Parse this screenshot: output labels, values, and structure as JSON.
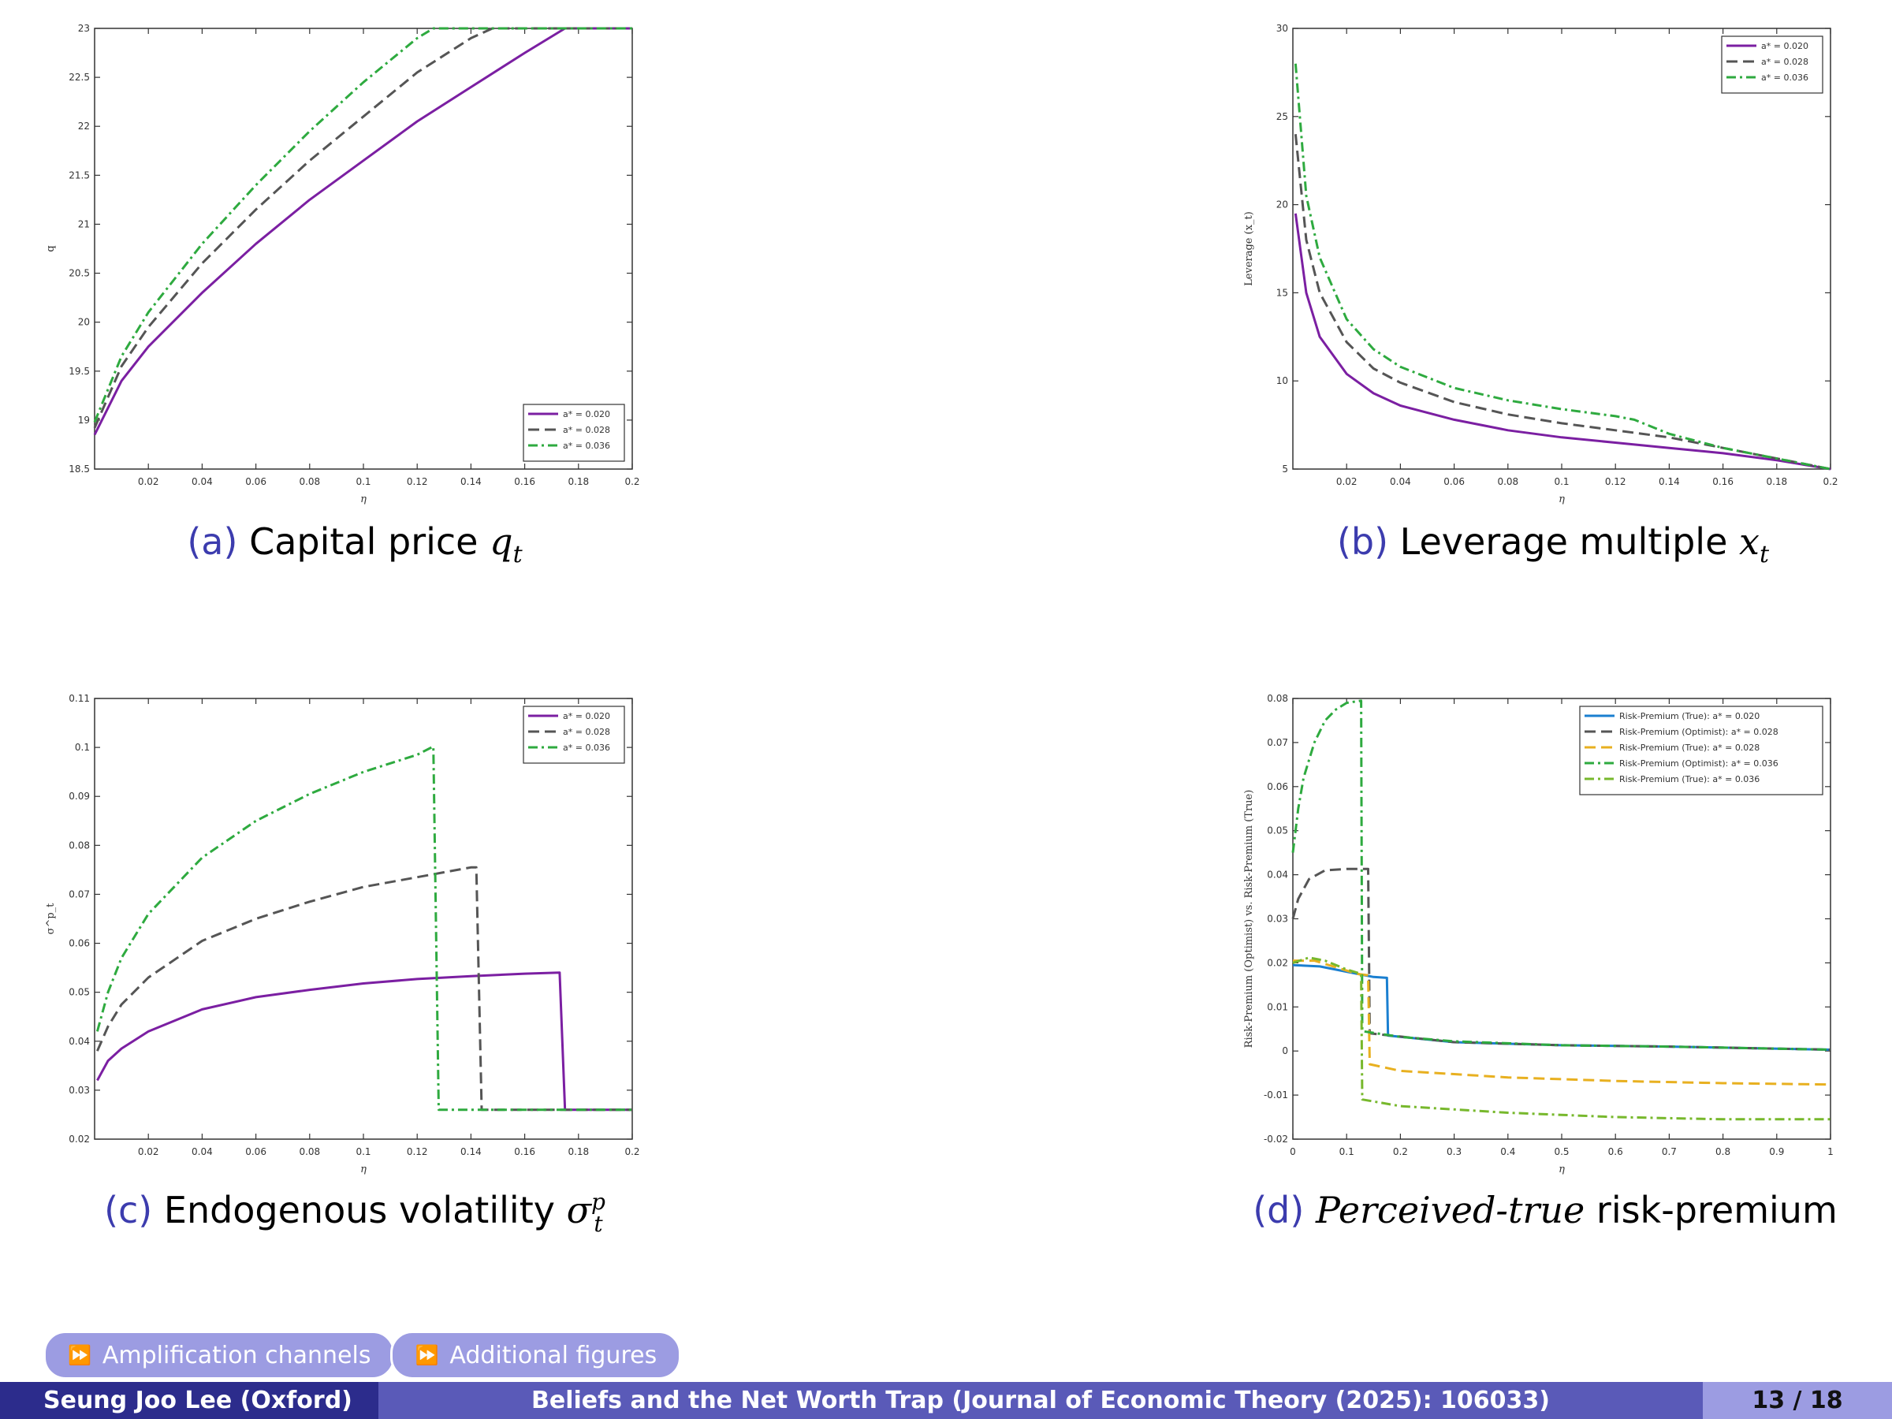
{
  "captions": {
    "a": {
      "tag": "(a)",
      "text": "Capital price ",
      "math": "q",
      "sub": "t"
    },
    "b": {
      "tag": "(b)",
      "text": "Leverage multiple ",
      "math": "x",
      "sub": "t"
    },
    "c": {
      "tag": "(c)",
      "text": "Endogenous volatility ",
      "math": "σ",
      "sup": "p",
      "sub": "t"
    },
    "d": {
      "tag": "(d)",
      "italic": "Perceived-true",
      "text": " risk-premium"
    }
  },
  "nav": {
    "buttons": [
      {
        "icon": "fast-forward-icon",
        "label": "Amplification channels"
      },
      {
        "icon": "fast-forward-icon",
        "label": "Additional figures"
      }
    ]
  },
  "footer": {
    "author": "Seung Joo Lee (Oxford)",
    "title": "Beliefs and the Net Worth Trap (Journal of Economic Theory (2025): 106033)",
    "page": "13 / 18"
  },
  "colors": {
    "purple": "#7b1fa2",
    "gray": "#555555",
    "green": "#2eaa3f",
    "blue": "#1a7fd0",
    "yellow": "#e8b020",
    "lime": "#77b82c",
    "theme": "#5a5ab8"
  },
  "chart_data": [
    {
      "id": "a",
      "type": "line",
      "xlabel": "η",
      "ylabel": "q",
      "xlim": [
        0,
        0.2
      ],
      "ylim": [
        18.5,
        23
      ],
      "xticks": [
        "0.02",
        "0.04",
        "0.06",
        "0.08",
        "0.1",
        "0.12",
        "0.14",
        "0.16",
        "0.18",
        "0.2"
      ],
      "xtick_values": [
        0.02,
        0.04,
        0.06,
        0.08,
        0.1,
        0.12,
        0.14,
        0.16,
        0.18,
        0.2
      ],
      "yticks": [
        "18.5",
        "19",
        "19.5",
        "20",
        "20.5",
        "21",
        "21.5",
        "22",
        "22.5",
        "23"
      ],
      "ytick_values": [
        18.5,
        19,
        19.5,
        20,
        20.5,
        21,
        21.5,
        22,
        22.5,
        23
      ],
      "legend_position": "bottom-right",
      "series": [
        {
          "name": "a* = 0.020",
          "color": "#7b1fa2",
          "dash": "solid",
          "points": [
            [
              0,
              18.85
            ],
            [
              0.01,
              19.4
            ],
            [
              0.02,
              19.75
            ],
            [
              0.04,
              20.3
            ],
            [
              0.06,
              20.8
            ],
            [
              0.08,
              21.25
            ],
            [
              0.1,
              21.65
            ],
            [
              0.12,
              22.05
            ],
            [
              0.14,
              22.4
            ],
            [
              0.16,
              22.75
            ],
            [
              0.175,
              23.0
            ],
            [
              0.2,
              23.0
            ]
          ]
        },
        {
          "name": "a* = 0.028",
          "color": "#555555",
          "dash": "dashed",
          "points": [
            [
              0,
              18.92
            ],
            [
              0.01,
              19.55
            ],
            [
              0.02,
              19.95
            ],
            [
              0.04,
              20.6
            ],
            [
              0.06,
              21.15
            ],
            [
              0.08,
              21.65
            ],
            [
              0.1,
              22.1
            ],
            [
              0.12,
              22.55
            ],
            [
              0.14,
              22.9
            ],
            [
              0.148,
              23.0
            ],
            [
              0.2,
              23.0
            ]
          ]
        },
        {
          "name": "a* = 0.036",
          "color": "#2eaa3f",
          "dash": "dashdot",
          "points": [
            [
              0,
              18.98
            ],
            [
              0.01,
              19.65
            ],
            [
              0.02,
              20.1
            ],
            [
              0.04,
              20.8
            ],
            [
              0.06,
              21.4
            ],
            [
              0.08,
              21.95
            ],
            [
              0.1,
              22.45
            ],
            [
              0.12,
              22.9
            ],
            [
              0.126,
              23.0
            ],
            [
              0.2,
              23.0
            ]
          ]
        }
      ]
    },
    {
      "id": "b",
      "type": "line",
      "xlabel": "η",
      "ylabel": "Leverage (x_t)",
      "xlim": [
        0,
        0.2
      ],
      "ylim": [
        5,
        30
      ],
      "xticks": [
        "0.02",
        "0.04",
        "0.06",
        "0.08",
        "0.1",
        "0.12",
        "0.14",
        "0.16",
        "0.18",
        "0.2"
      ],
      "xtick_values": [
        0.02,
        0.04,
        0.06,
        0.08,
        0.1,
        0.12,
        0.14,
        0.16,
        0.18,
        0.2
      ],
      "yticks": [
        "5",
        "10",
        "15",
        "20",
        "25",
        "30"
      ],
      "ytick_values": [
        5,
        10,
        15,
        20,
        25,
        30
      ],
      "legend_position": "top-right",
      "series": [
        {
          "name": "a* = 0.020",
          "color": "#7b1fa2",
          "dash": "solid",
          "points": [
            [
              0.001,
              19.5
            ],
            [
              0.005,
              15.0
            ],
            [
              0.01,
              12.5
            ],
            [
              0.02,
              10.4
            ],
            [
              0.03,
              9.3
            ],
            [
              0.04,
              8.6
            ],
            [
              0.06,
              7.8
            ],
            [
              0.08,
              7.2
            ],
            [
              0.1,
              6.8
            ],
            [
              0.12,
              6.5
            ],
            [
              0.14,
              6.2
            ],
            [
              0.16,
              5.9
            ],
            [
              0.18,
              5.5
            ],
            [
              0.2,
              5.0
            ]
          ]
        },
        {
          "name": "a* = 0.028",
          "color": "#555555",
          "dash": "dashed",
          "points": [
            [
              0.001,
              24.0
            ],
            [
              0.005,
              18.0
            ],
            [
              0.01,
              15.0
            ],
            [
              0.02,
              12.2
            ],
            [
              0.03,
              10.7
            ],
            [
              0.04,
              9.9
            ],
            [
              0.06,
              8.8
            ],
            [
              0.08,
              8.1
            ],
            [
              0.1,
              7.6
            ],
            [
              0.12,
              7.2
            ],
            [
              0.14,
              6.8
            ],
            [
              0.16,
              6.2
            ],
            [
              0.18,
              5.6
            ],
            [
              0.2,
              5.0
            ]
          ]
        },
        {
          "name": "a* = 0.036",
          "color": "#2eaa3f",
          "dash": "dashdot",
          "points": [
            [
              0.001,
              28.0
            ],
            [
              0.005,
              20.5
            ],
            [
              0.01,
              17.0
            ],
            [
              0.02,
              13.5
            ],
            [
              0.03,
              11.8
            ],
            [
              0.04,
              10.8
            ],
            [
              0.06,
              9.6
            ],
            [
              0.08,
              8.9
            ],
            [
              0.1,
              8.4
            ],
            [
              0.12,
              8.0
            ],
            [
              0.127,
              7.8
            ],
            [
              0.14,
              7.0
            ],
            [
              0.16,
              6.2
            ],
            [
              0.18,
              5.6
            ],
            [
              0.2,
              5.0
            ]
          ]
        }
      ]
    },
    {
      "id": "c",
      "type": "line",
      "xlabel": "η",
      "ylabel": "σ^p_t",
      "xlim": [
        0,
        0.2
      ],
      "ylim": [
        0.02,
        0.11
      ],
      "xticks": [
        "0.02",
        "0.04",
        "0.06",
        "0.08",
        "0.1",
        "0.12",
        "0.14",
        "0.16",
        "0.18",
        "0.2"
      ],
      "xtick_values": [
        0.02,
        0.04,
        0.06,
        0.08,
        0.1,
        0.12,
        0.14,
        0.16,
        0.18,
        0.2
      ],
      "yticks": [
        "0.02",
        "0.03",
        "0.04",
        "0.05",
        "0.06",
        "0.07",
        "0.08",
        "0.09",
        "0.1",
        "0.11"
      ],
      "ytick_values": [
        0.02,
        0.03,
        0.04,
        0.05,
        0.06,
        0.07,
        0.08,
        0.09,
        0.1,
        0.11
      ],
      "legend_position": "top-right",
      "series": [
        {
          "name": "a* = 0.020",
          "color": "#7b1fa2",
          "dash": "solid",
          "points": [
            [
              0.001,
              0.032
            ],
            [
              0.005,
              0.036
            ],
            [
              0.01,
              0.0385
            ],
            [
              0.02,
              0.042
            ],
            [
              0.04,
              0.0465
            ],
            [
              0.06,
              0.049
            ],
            [
              0.08,
              0.0505
            ],
            [
              0.1,
              0.0518
            ],
            [
              0.12,
              0.0527
            ],
            [
              0.14,
              0.0533
            ],
            [
              0.16,
              0.0538
            ],
            [
              0.173,
              0.054
            ],
            [
              0.175,
              0.026
            ],
            [
              0.2,
              0.026
            ]
          ]
        },
        {
          "name": "a* = 0.028",
          "color": "#555555",
          "dash": "dashed",
          "points": [
            [
              0.001,
              0.038
            ],
            [
              0.005,
              0.043
            ],
            [
              0.01,
              0.0475
            ],
            [
              0.02,
              0.053
            ],
            [
              0.04,
              0.0605
            ],
            [
              0.06,
              0.065
            ],
            [
              0.08,
              0.0685
            ],
            [
              0.1,
              0.0715
            ],
            [
              0.12,
              0.0735
            ],
            [
              0.14,
              0.0755
            ],
            [
              0.142,
              0.0755
            ],
            [
              0.144,
              0.026
            ],
            [
              0.2,
              0.026
            ]
          ]
        },
        {
          "name": "a* = 0.036",
          "color": "#2eaa3f",
          "dash": "dashdot",
          "points": [
            [
              0.001,
              0.042
            ],
            [
              0.005,
              0.05
            ],
            [
              0.01,
              0.057
            ],
            [
              0.02,
              0.066
            ],
            [
              0.04,
              0.0775
            ],
            [
              0.06,
              0.085
            ],
            [
              0.08,
              0.0905
            ],
            [
              0.1,
              0.095
            ],
            [
              0.12,
              0.0985
            ],
            [
              0.126,
              0.1002
            ],
            [
              0.128,
              0.026
            ],
            [
              0.2,
              0.026
            ]
          ]
        }
      ]
    },
    {
      "id": "d",
      "type": "line",
      "xlabel": "η",
      "ylabel": "Risk-Premium (Optimist) vs. Risk-Premium (True)",
      "xlim": [
        0,
        1
      ],
      "ylim": [
        -0.02,
        0.08
      ],
      "xticks": [
        "0",
        "0.1",
        "0.2",
        "0.3",
        "0.4",
        "0.5",
        "0.6",
        "0.7",
        "0.8",
        "0.9",
        "1"
      ],
      "xtick_values": [
        0,
        0.1,
        0.2,
        0.3,
        0.4,
        0.5,
        0.6,
        0.7,
        0.8,
        0.9,
        1
      ],
      "yticks": [
        "-0.02",
        "-0.01",
        "0",
        "0.01",
        "0.02",
        "0.03",
        "0.04",
        "0.05",
        "0.06",
        "0.07",
        "0.08"
      ],
      "ytick_values": [
        -0.02,
        -0.01,
        0,
        0.01,
        0.02,
        0.03,
        0.04,
        0.05,
        0.06,
        0.07,
        0.08
      ],
      "legend_position": "top-right",
      "series": [
        {
          "name": "Risk-Premium (True): a* = 0.020",
          "color": "#1a7fd0",
          "dash": "solid",
          "points": [
            [
              0,
              0.0195
            ],
            [
              0.05,
              0.0192
            ],
            [
              0.1,
              0.018
            ],
            [
              0.15,
              0.0168
            ],
            [
              0.175,
              0.0166
            ],
            [
              0.177,
              0.0035
            ],
            [
              0.3,
              0.002
            ],
            [
              0.5,
              0.0013
            ],
            [
              0.7,
              0.001
            ],
            [
              1.0,
              0.0003
            ]
          ]
        },
        {
          "name": "Risk-Premium (Optimist): a* = 0.028",
          "color": "#555555",
          "dash": "dashed",
          "points": [
            [
              0,
              0.03
            ],
            [
              0.01,
              0.0345
            ],
            [
              0.03,
              0.039
            ],
            [
              0.06,
              0.041
            ],
            [
              0.1,
              0.0413
            ],
            [
              0.14,
              0.0413
            ],
            [
              0.143,
              0.004
            ],
            [
              0.3,
              0.002
            ],
            [
              0.5,
              0.0013
            ],
            [
              0.7,
              0.001
            ],
            [
              1.0,
              0.0003
            ]
          ]
        },
        {
          "name": "Risk-Premium (True): a* = 0.028",
          "color": "#e8b020",
          "dash": "dashed",
          "points": [
            [
              0,
              0.0205
            ],
            [
              0.04,
              0.0205
            ],
            [
              0.08,
              0.019
            ],
            [
              0.12,
              0.0175
            ],
            [
              0.14,
              0.0172
            ],
            [
              0.143,
              -0.003
            ],
            [
              0.2,
              -0.0045
            ],
            [
              0.4,
              -0.006
            ],
            [
              0.6,
              -0.0068
            ],
            [
              0.8,
              -0.0073
            ],
            [
              1.0,
              -0.0076
            ]
          ]
        },
        {
          "name": "Risk-Premium (Optimist): a* = 0.036",
          "color": "#2eaa3f",
          "dash": "dashdot",
          "points": [
            [
              0,
              0.045
            ],
            [
              0.01,
              0.055
            ],
            [
              0.02,
              0.062
            ],
            [
              0.04,
              0.07
            ],
            [
              0.06,
              0.075
            ],
            [
              0.08,
              0.0775
            ],
            [
              0.1,
              0.079
            ],
            [
              0.127,
              0.0795
            ],
            [
              0.129,
              0.0045
            ],
            [
              0.2,
              0.0032
            ],
            [
              0.3,
              0.0022
            ],
            [
              0.5,
              0.0013
            ],
            [
              0.7,
              0.001
            ],
            [
              1.0,
              0.0003
            ]
          ]
        },
        {
          "name": "Risk-Premium (True): a* = 0.036",
          "color": "#77b82c",
          "dash": "dashdot",
          "points": [
            [
              0,
              0.02
            ],
            [
              0.03,
              0.0212
            ],
            [
              0.06,
              0.0205
            ],
            [
              0.1,
              0.0185
            ],
            [
              0.127,
              0.0175
            ],
            [
              0.129,
              -0.011
            ],
            [
              0.2,
              -0.0125
            ],
            [
              0.4,
              -0.014
            ],
            [
              0.6,
              -0.015
            ],
            [
              0.8,
              -0.0155
            ],
            [
              1.0,
              -0.0155
            ]
          ]
        }
      ]
    }
  ]
}
